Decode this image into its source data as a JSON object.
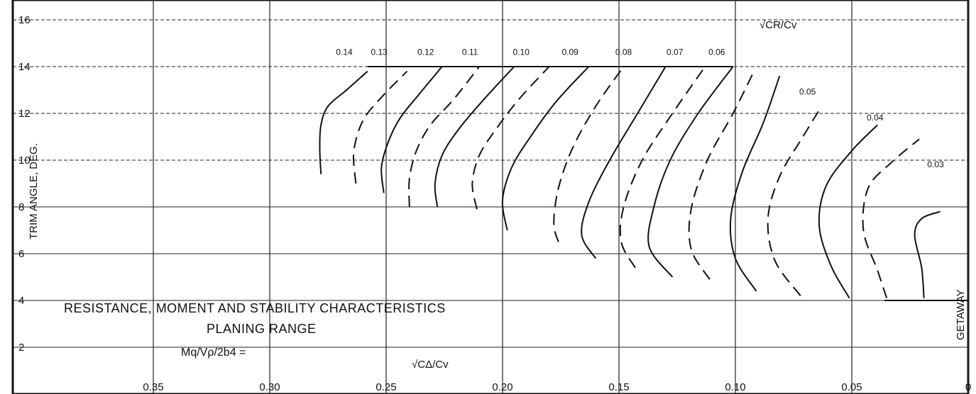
{
  "chart_data": {
    "type": "line",
    "title": "RESISTANCE, MOMENT AND STABILITY CHARACTERISTICS",
    "subtitle": "PLANING RANGE",
    "parameter_label": "Mq/Vρ/2b4 =",
    "xlabel": "√CΔ/Cv",
    "ylabel": "TRIM ANGLE, DEG.",
    "contour_label": "√CR/Cv",
    "right_label": "GETAWAY",
    "xlim": [
      0.375,
      0.0
    ],
    "ylim": [
      1.0,
      16.8
    ],
    "x_tick_labels": [
      "0.35",
      "0.30",
      "0.25",
      "0.20",
      "0.15",
      "0.10",
      "0.05",
      "0"
    ],
    "y_tick_labels": [
      "16",
      "14",
      "12",
      "10",
      "8",
      "6",
      "4",
      "2"
    ],
    "grid": true,
    "series": [
      {
        "name": "0.14",
        "x": [
          0.278,
          0.2785,
          0.278,
          0.275,
          0.267,
          0.258
        ],
        "y": [
          9.4,
          10.5,
          11.5,
          12.3,
          13.0,
          13.8
        ]
      },
      {
        "name": "0.13",
        "x": [
          0.263,
          0.264,
          0.262,
          0.258,
          0.25,
          0.241
        ],
        "y": [
          9.0,
          10.2,
          11.2,
          12.0,
          12.9,
          13.8
        ]
      },
      {
        "name": "0.12",
        "x": [
          0.251,
          0.252,
          0.249,
          0.244,
          0.236,
          0.226
        ],
        "y": [
          8.6,
          9.7,
          10.8,
          11.8,
          12.8,
          14.0
        ]
      },
      {
        "name": "0.11",
        "x": [
          0.24,
          0.24,
          0.237,
          0.231,
          0.221,
          0.21
        ],
        "y": [
          8.0,
          9.2,
          10.4,
          11.5,
          12.6,
          14.0
        ]
      },
      {
        "name": "0.10",
        "x": [
          0.228,
          0.229,
          0.226,
          0.219,
          0.208,
          0.195
        ],
        "y": [
          8.0,
          9.0,
          10.2,
          11.3,
          12.6,
          14.0
        ]
      },
      {
        "name": "0.09",
        "x": [
          0.211,
          0.213,
          0.21,
          0.203,
          0.193,
          0.18
        ],
        "y": [
          7.9,
          9.0,
          10.2,
          11.3,
          12.6,
          14.0
        ]
      },
      {
        "name": "0.08",
        "x": [
          0.198,
          0.2,
          0.196,
          0.188,
          0.177,
          0.163
        ],
        "y": [
          7.0,
          8.3,
          9.7,
          11.0,
          12.5,
          14.0
        ]
      },
      {
        "name": "0.07",
        "x": [
          0.176,
          0.178,
          0.176,
          0.17,
          0.16,
          0.148
        ],
        "y": [
          6.5,
          7.3,
          8.8,
          10.5,
          12.3,
          14.0
        ]
      },
      {
        "name": "0.06",
        "x": [
          0.16,
          0.166,
          0.163,
          0.154,
          0.142,
          0.13
        ],
        "y": [
          5.8,
          6.8,
          8.2,
          10.0,
          12.0,
          14.0
        ]
      },
      {
        "name": "0.05",
        "x": [
          0.143,
          0.149,
          0.148,
          0.14,
          0.127,
          0.113
        ],
        "y": [
          5.4,
          6.5,
          8.0,
          10.0,
          12.0,
          14.0
        ]
      },
      {
        "name": "0.04",
        "x": [
          0.127,
          0.137,
          0.135,
          0.128,
          0.116,
          0.101
        ],
        "y": [
          5.0,
          6.3,
          8.0,
          10.0,
          12.0,
          14.0
        ]
      },
      {
        "name": "0.03",
        "x": [
          0.111,
          0.119,
          0.119,
          0.112,
          0.101,
          0.092
        ],
        "y": [
          4.9,
          6.2,
          7.9,
          10.0,
          12.0,
          13.8
        ]
      },
      {
        "name": "0.03",
        "x": [
          0.091,
          0.1,
          0.102,
          0.097,
          0.088,
          0.081
        ],
        "y": [
          4.4,
          5.8,
          7.5,
          9.5,
          11.6,
          13.6
        ]
      },
      {
        "name": "0.04",
        "x": [
          0.072,
          0.083,
          0.086,
          0.081,
          0.071,
          0.063
        ],
        "y": [
          4.2,
          5.7,
          7.5,
          9.3,
          11.0,
          12.3
        ]
      },
      {
        "name": "0.05",
        "x": [
          0.051,
          0.059,
          0.064,
          0.061,
          0.05,
          0.039
        ],
        "y": [
          4.1,
          5.5,
          7.2,
          8.9,
          10.4,
          11.5
        ]
      },
      {
        "name": "0.04",
        "x": [
          0.035,
          0.039,
          0.045,
          0.043,
          0.033,
          0.021
        ],
        "y": [
          4.1,
          5.3,
          7.0,
          8.8,
          9.9,
          10.9
        ]
      },
      {
        "name": "0.03",
        "x": [
          0.019,
          0.02,
          0.023,
          0.02,
          0.012
        ],
        "y": [
          4.1,
          5.4,
          6.8,
          7.5,
          7.8
        ]
      }
    ],
    "curve_labels": [
      {
        "text": "0.14",
        "x": 0.268,
        "y": 14.5
      },
      {
        "text": "0.13",
        "x": 0.253,
        "y": 14.5
      },
      {
        "text": "0.12",
        "x": 0.233,
        "y": 14.5
      },
      {
        "text": "0.11",
        "x": 0.214,
        "y": 14.5
      },
      {
        "text": "0.10",
        "x": 0.192,
        "y": 14.5
      },
      {
        "text": "0.09",
        "x": 0.171,
        "y": 14.5
      },
      {
        "text": "0.08",
        "x": 0.148,
        "y": 14.5
      },
      {
        "text": "0.07",
        "x": 0.126,
        "y": 14.5
      },
      {
        "text": "0.06",
        "x": 0.108,
        "y": 14.5
      },
      {
        "text": "0.05",
        "x": 0.069,
        "y": 12.8
      },
      {
        "text": "0.04",
        "x": 0.04,
        "y": 11.7
      },
      {
        "text": "0.03",
        "x": 0.014,
        "y": 9.7
      }
    ],
    "dashed_series_indices": [
      1,
      3,
      5,
      7,
      9,
      11,
      13,
      15
    ]
  }
}
